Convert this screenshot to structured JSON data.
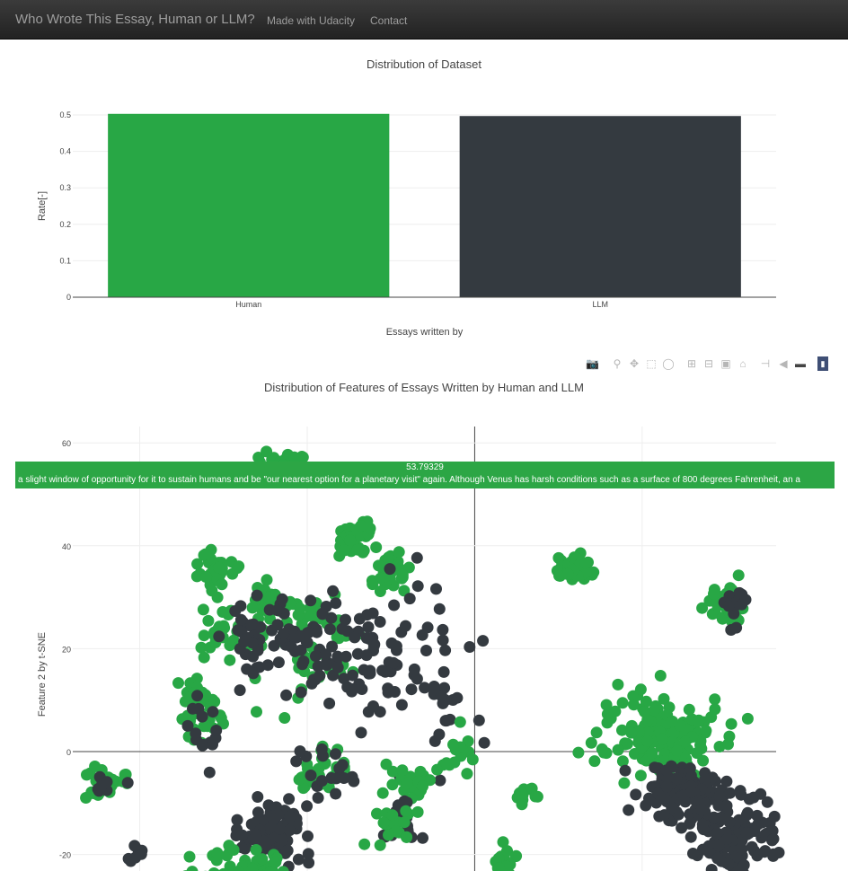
{
  "navbar": {
    "brand": "Who Wrote This Essay, Human or LLM?",
    "links": [
      "Made with Udacity",
      "Contact"
    ]
  },
  "colors": {
    "human": "#28a745",
    "llm": "#343a40",
    "navbar": "#222222"
  },
  "modebar_icons": [
    "camera-icon",
    "zoom-icon",
    "pan-icon",
    "box-select-icon",
    "lasso-icon",
    "zoom-in-icon",
    "zoom-out-icon",
    "autoscale-icon",
    "reset-axes-icon",
    "spike-lines-icon",
    "hover-closest-icon",
    "hover-compare-icon",
    "plotly-logo-icon"
  ],
  "chart_data": [
    {
      "type": "bar",
      "title": "Distribution of Dataset",
      "categories": [
        "Human",
        "LLM"
      ],
      "values": [
        0.503,
        0.497
      ],
      "colors": [
        "#28a745",
        "#343a40"
      ],
      "xlabel": "Essays written by",
      "ylabel": "Rate[-]",
      "ylim": [
        0,
        0.5
      ],
      "yticks": [
        "0",
        "0.1",
        "0.2",
        "0.3",
        "0.4",
        "0.5"
      ],
      "grid": true
    },
    {
      "type": "scatter",
      "title": "Distribution of Features of Essays Written by Human and LLM",
      "ylabel": "Feature 2 by t-SNE",
      "yticks": [
        "60",
        "40",
        "20",
        "0",
        "-20"
      ],
      "hover": {
        "value": "53.79329",
        "text": "a slight window of opportunity for it to sustain humans and be \"our nearest option for a planetary visit\" again.  Although Venus has harsh conditions such as a surface of 800 degrees Fahrenheit, an a"
      },
      "clusters": [
        {
          "label": "Human",
          "x": -57,
          "y": 56,
          "sx": 4,
          "sy": 1.5,
          "n": 30
        },
        {
          "label": "Human",
          "x": -78,
          "y": 35,
          "sx": 3,
          "sy": 2,
          "n": 40
        },
        {
          "label": "Human",
          "x": -61,
          "y": 30,
          "sx": 3,
          "sy": 1.5,
          "n": 35
        },
        {
          "label": "Human",
          "x": -75,
          "y": 23,
          "sx": 3,
          "sy": 2.5,
          "n": 30
        },
        {
          "label": "Human",
          "x": -82,
          "y": 10,
          "sx": 3,
          "sy": 2.5,
          "n": 25
        },
        {
          "label": "Human",
          "x": -50,
          "y": 22,
          "sx": 8,
          "sy": 5,
          "n": 55
        },
        {
          "label": "LLM",
          "x": -55,
          "y": 20,
          "sx": 9,
          "sy": 5,
          "n": 70
        },
        {
          "label": "LLM",
          "x": -68,
          "y": 23,
          "sx": 3,
          "sy": 2,
          "n": 10
        },
        {
          "label": "Human",
          "x": -26,
          "y": 35,
          "sx": 3,
          "sy": 2,
          "n": 35
        },
        {
          "label": "Human",
          "x": 30,
          "y": 35,
          "sx": 3,
          "sy": 1.5,
          "n": 30
        },
        {
          "label": "Human",
          "x": -82,
          "y": 6,
          "sx": 3,
          "sy": 2,
          "n": 25
        },
        {
          "label": "LLM",
          "x": -82,
          "y": 6,
          "sx": 4,
          "sy": 3,
          "n": 15
        },
        {
          "label": "LLM",
          "x": -28,
          "y": 20,
          "sx": 12,
          "sy": 8,
          "n": 80
        },
        {
          "label": "Human",
          "x": -45,
          "y": -4,
          "sx": 4,
          "sy": 2,
          "n": 35
        },
        {
          "label": "LLM",
          "x": -45,
          "y": -4,
          "sx": 6,
          "sy": 3,
          "n": 20
        },
        {
          "label": "Human",
          "x": -20,
          "y": -5,
          "sx": 3,
          "sy": 2,
          "n": 30
        },
        {
          "label": "Human",
          "x": -110,
          "y": -6,
          "sx": 3,
          "sy": 1.5,
          "n": 30
        },
        {
          "label": "LLM",
          "x": -110,
          "y": -6,
          "sx": 2,
          "sy": 1,
          "n": 8
        },
        {
          "label": "Human",
          "x": -36,
          "y": 42,
          "sx": 3,
          "sy": 2,
          "n": 35
        },
        {
          "label": "Human",
          "x": 55,
          "y": 3,
          "sx": 9,
          "sy": 4,
          "n": 150
        },
        {
          "label": "LLM",
          "x": 62,
          "y": -8,
          "sx": 6,
          "sy": 3,
          "n": 120
        },
        {
          "label": "LLM",
          "x": 77,
          "y": -16,
          "sx": 7,
          "sy": 4,
          "n": 130
        },
        {
          "label": "Human",
          "x": 76,
          "y": 28,
          "sx": 3,
          "sy": 2,
          "n": 30
        },
        {
          "label": "LLM",
          "x": 78,
          "y": 28,
          "sx": 3,
          "sy": 2,
          "n": 12
        },
        {
          "label": "LLM",
          "x": -60,
          "y": -16,
          "sx": 5,
          "sy": 3,
          "n": 90
        },
        {
          "label": "Human",
          "x": -70,
          "y": -23,
          "sx": 7,
          "sy": 2,
          "n": 80
        },
        {
          "label": "LLM",
          "x": -22,
          "y": -14,
          "sx": 3,
          "sy": 2,
          "n": 20
        },
        {
          "label": "Human",
          "x": -25,
          "y": -14,
          "sx": 3,
          "sy": 2,
          "n": 20
        },
        {
          "label": "Human",
          "x": 15,
          "y": -8,
          "sx": 2,
          "sy": 1,
          "n": 12
        },
        {
          "label": "Human",
          "x": 10,
          "y": -22,
          "sx": 3,
          "sy": 2,
          "n": 20
        },
        {
          "label": "LLM",
          "x": -100,
          "y": -19,
          "sx": 2,
          "sy": 1.5,
          "n": 8
        },
        {
          "label": "LLM",
          "x": -10,
          "y": 10,
          "sx": 5,
          "sy": 4,
          "n": 15
        },
        {
          "label": "Human",
          "x": -5,
          "y": 0,
          "sx": 3,
          "sy": 2,
          "n": 15
        }
      ]
    }
  ]
}
